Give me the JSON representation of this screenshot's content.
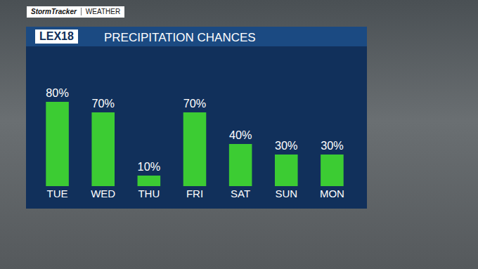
{
  "header": {
    "brand": "StormTracker",
    "section": "WEATHER",
    "logo": "LEX18"
  },
  "chart_data": {
    "type": "bar",
    "title": "PRECIPITATION CHANCES",
    "categories": [
      "TUE",
      "WED",
      "THU",
      "FRI",
      "SAT",
      "SUN",
      "MON"
    ],
    "values": [
      80,
      70,
      10,
      70,
      40,
      30,
      30
    ],
    "value_labels": [
      "80%",
      "70%",
      "10%",
      "70%",
      "40%",
      "30%",
      "30%"
    ],
    "color": "#3ccc33",
    "ylim": [
      0,
      100
    ],
    "data_labels": true,
    "tick_labels": "x",
    "grid": false
  }
}
